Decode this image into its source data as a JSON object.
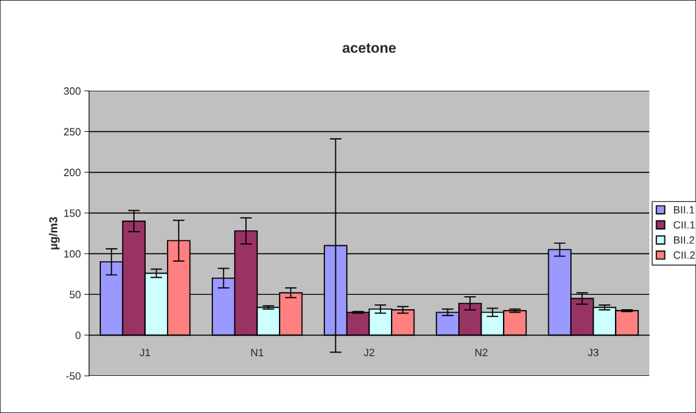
{
  "chart_data": {
    "type": "bar",
    "title": "acetone",
    "ylabel": "µg/m3",
    "categories": [
      "J1",
      "N1",
      "J2",
      "N2",
      "J3"
    ],
    "series": [
      {
        "name": "BII.1",
        "color": "#9999ff",
        "values": [
          90,
          70,
          110,
          28,
          105
        ],
        "errors": [
          16,
          12,
          131,
          4,
          8
        ]
      },
      {
        "name": "CII.1",
        "color": "#993366",
        "values": [
          140,
          128,
          28,
          39,
          45
        ],
        "errors": [
          13,
          16,
          1,
          8,
          7
        ]
      },
      {
        "name": "BII.2",
        "color": "#ccffff",
        "values": [
          76,
          34,
          32,
          28,
          34
        ],
        "errors": [
          5,
          2,
          5,
          5,
          3
        ]
      },
      {
        "name": "CII.2",
        "color": "#ff8080",
        "values": [
          116,
          52,
          31,
          30,
          30
        ],
        "errors": [
          25,
          6,
          4,
          2,
          1
        ]
      }
    ],
    "ylim": [
      -50,
      300
    ],
    "yticks": [
      -50,
      0,
      50,
      100,
      150,
      200,
      250,
      300
    ],
    "grid": "y",
    "legend": "right"
  }
}
